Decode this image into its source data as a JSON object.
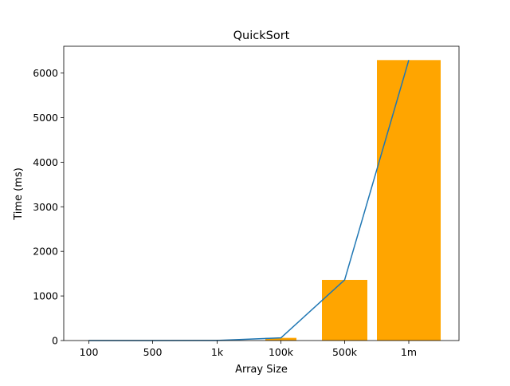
{
  "chart_data": {
    "type": "bar",
    "title": "QuickSort",
    "xlabel": "Array Size",
    "ylabel": "Time (ms)",
    "categories": [
      "100",
      "500",
      "1k",
      "100k",
      "500k",
      "1m"
    ],
    "x": [
      100,
      500,
      1000,
      100000,
      500000,
      1000000
    ],
    "ylim": [
      0,
      6600
    ],
    "yticks": [
      0,
      1000,
      2000,
      3000,
      4000,
      5000,
      6000
    ],
    "grid": false,
    "legend": "none",
    "series": [
      {
        "type": "bar",
        "color": "#ffa500",
        "values": [
          0,
          1,
          2,
          60,
          1360,
          6290
        ]
      },
      {
        "type": "line",
        "color": "#1f77b4",
        "values": [
          0,
          1,
          2,
          60,
          1360,
          6290
        ]
      }
    ]
  }
}
